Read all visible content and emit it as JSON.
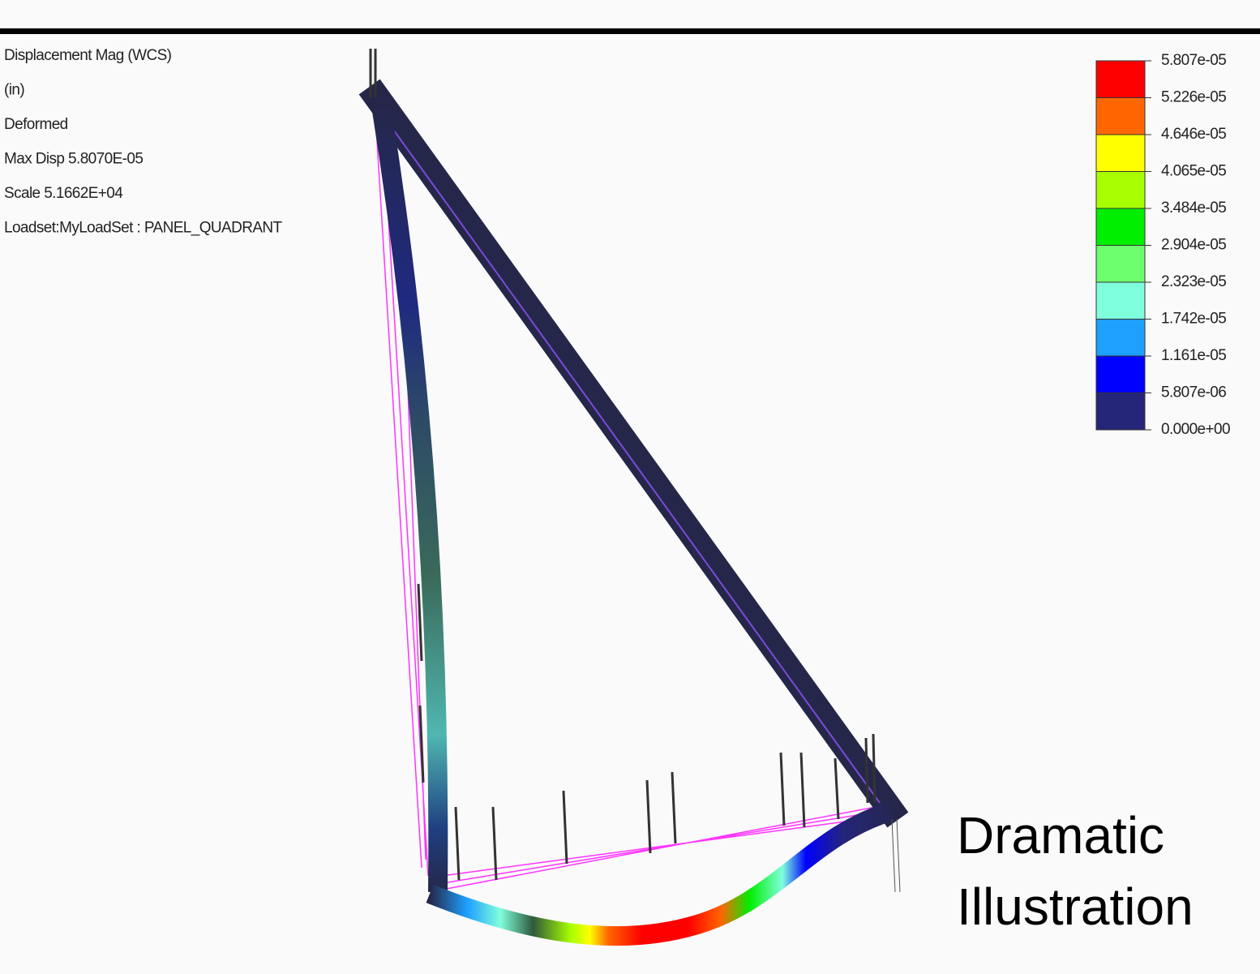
{
  "info": {
    "lines": [
      "Displacement Mag (WCS)",
      "(in)",
      "Deformed",
      "Max Disp  5.8070E-05",
      "Scale  5.1662E+04",
      "Loadset:MyLoadSet :  PANEL_QUADRANT"
    ]
  },
  "legend": {
    "labels": [
      "5.807e-05",
      "5.226e-05",
      "4.646e-05",
      "4.065e-05",
      "3.484e-05",
      "2.904e-05",
      "2.323e-05",
      "1.742e-05",
      "1.161e-05",
      "5.807e-06",
      "0.000e+00"
    ],
    "colors": [
      "#ff0000",
      "#ff6600",
      "#ffff00",
      "#a8ff00",
      "#00ee00",
      "#6dff6d",
      "#80ffdd",
      "#1ea0ff",
      "#0000ff",
      "#25257a"
    ]
  },
  "annotation": {
    "lines": [
      "Dramatic",
      "Illustration"
    ]
  }
}
